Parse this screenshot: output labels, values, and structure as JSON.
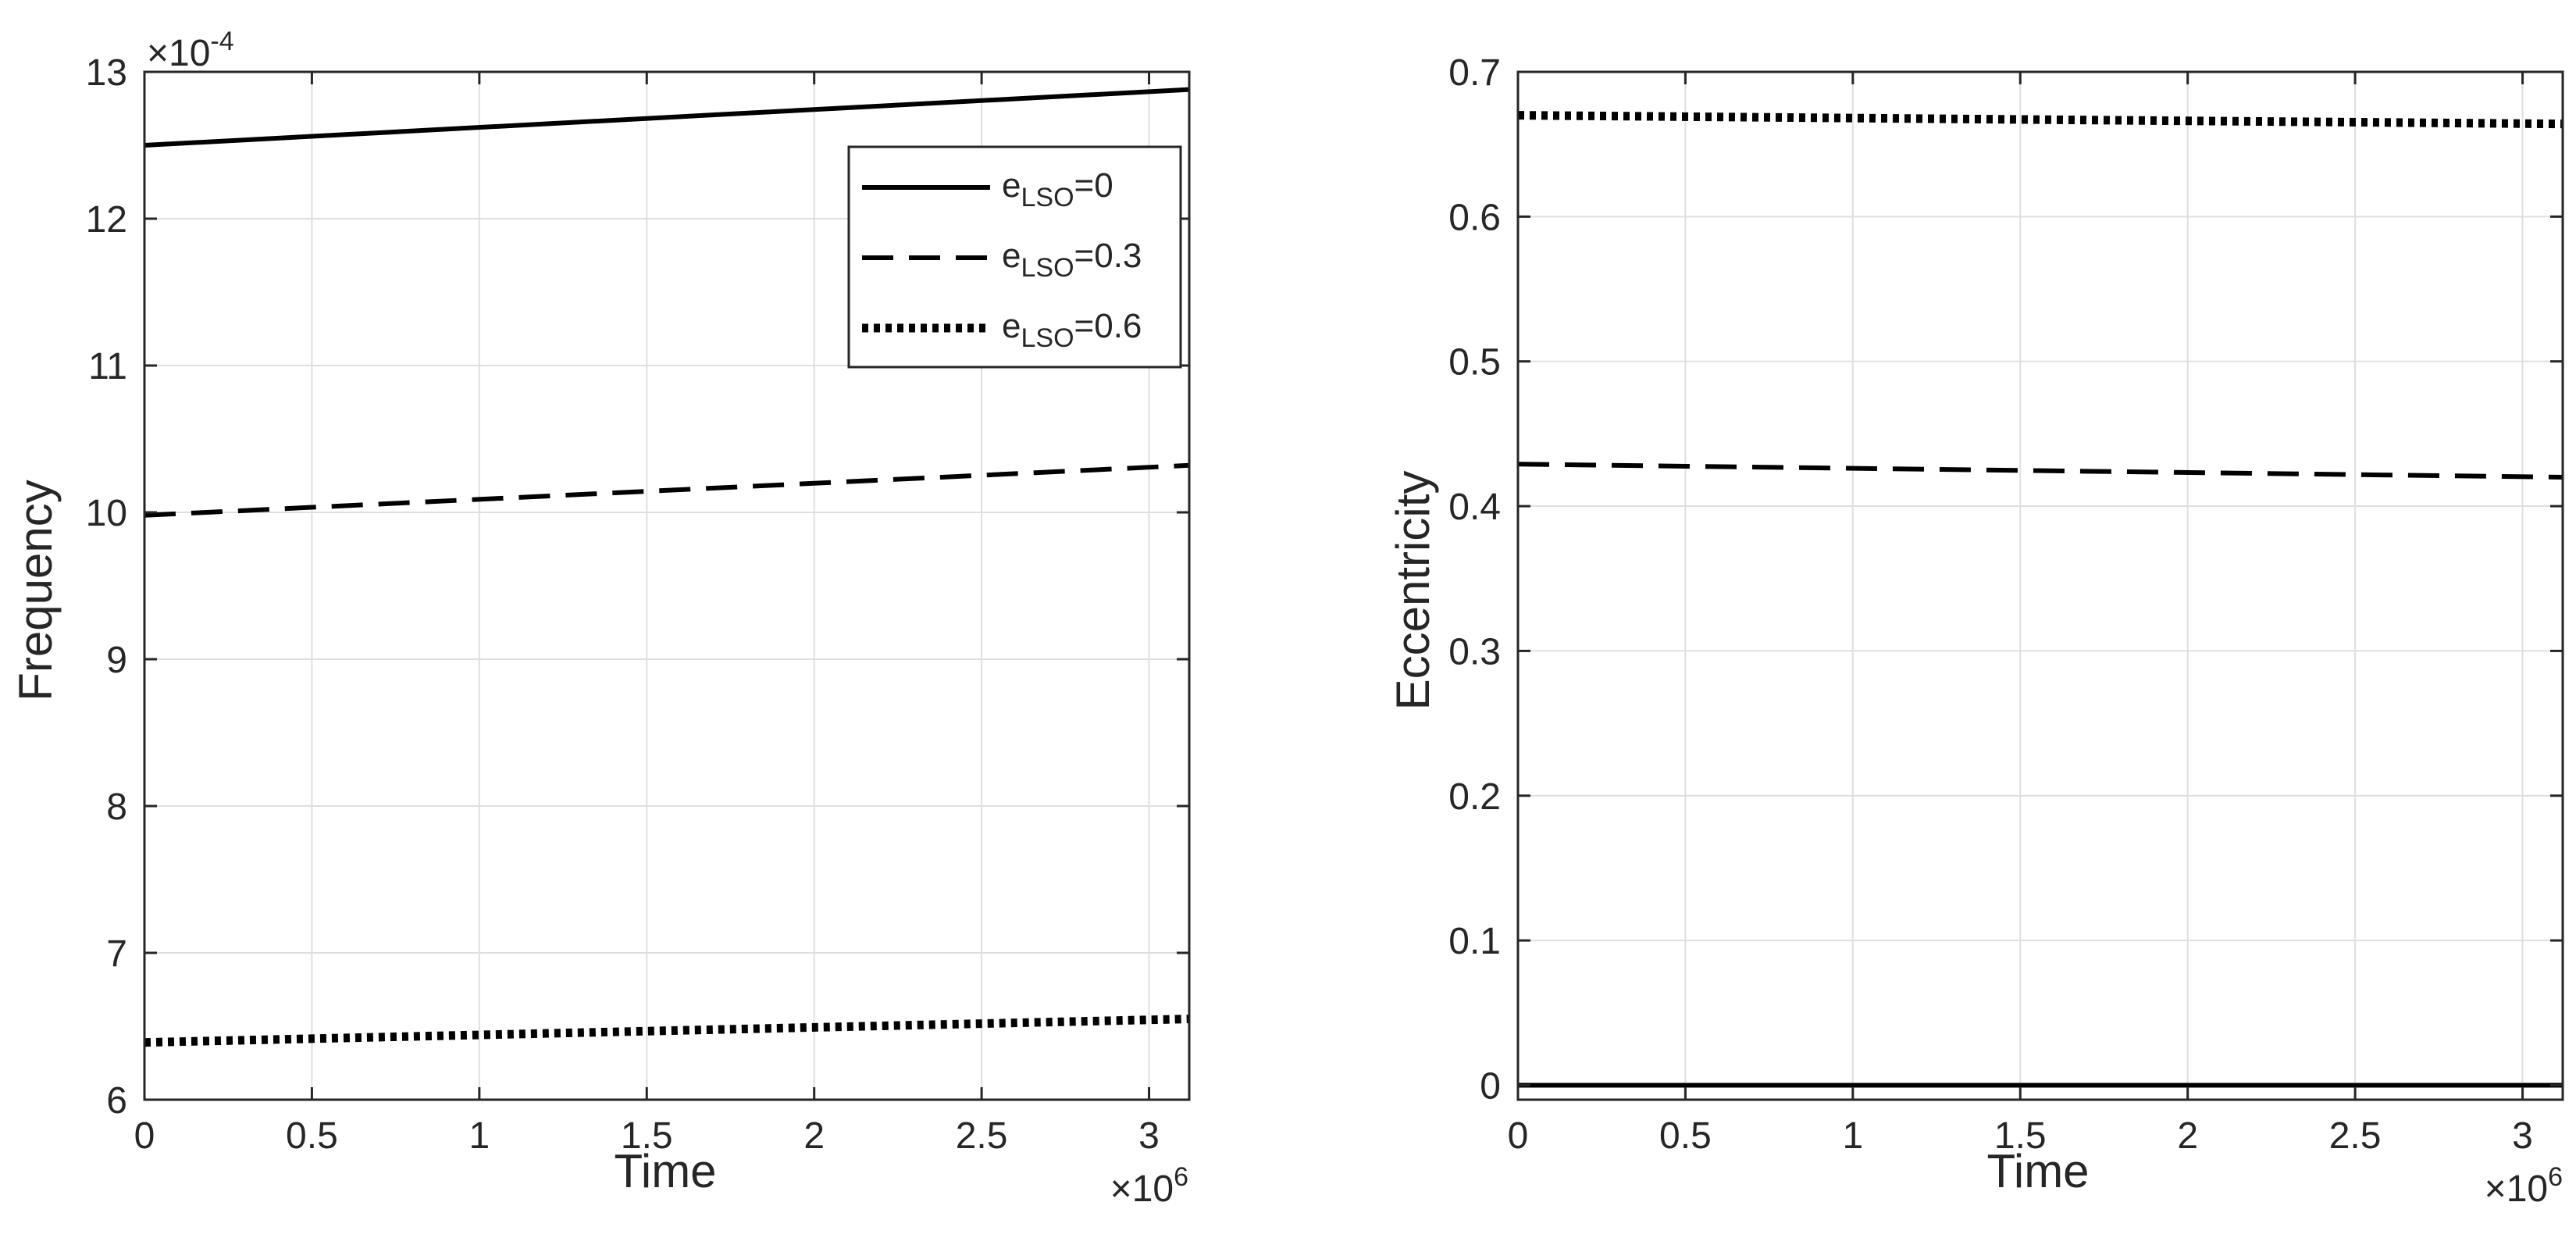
{
  "chart_data": [
    {
      "type": "line",
      "xlabel": "Time",
      "ylabel": "Frequency",
      "x_multiplier_label": "×10",
      "x_multiplier_exp": "6",
      "y_multiplier_label": "×10",
      "y_multiplier_exp": "-4",
      "xlim": [
        0,
        3.12
      ],
      "ylim": [
        6,
        13
      ],
      "xticks": [
        0,
        0.5,
        1,
        1.5,
        2,
        2.5,
        3
      ],
      "xtick_labels": [
        "0",
        "0.5",
        "1",
        "1.5",
        "2",
        "2.5",
        "3"
      ],
      "yticks": [
        6,
        7,
        8,
        9,
        10,
        11,
        12,
        13
      ],
      "ytick_labels": [
        "6",
        "7",
        "8",
        "9",
        "10",
        "11",
        "12",
        "13"
      ],
      "grid": true,
      "legend_position": "top-right",
      "series": [
        {
          "name": "e_LSO=0",
          "style": "solid",
          "x": [
            0,
            3.12
          ],
          "y": [
            12.5,
            12.88
          ]
        },
        {
          "name": "e_LSO=0.3",
          "style": "dashed",
          "x": [
            0,
            3.12
          ],
          "y": [
            9.98,
            10.32
          ]
        },
        {
          "name": "e_LSO=0.6",
          "style": "dotted",
          "x": [
            0,
            3.12
          ],
          "y": [
            6.39,
            6.55
          ]
        }
      ]
    },
    {
      "type": "line",
      "xlabel": "Time",
      "ylabel": "Eccentricity",
      "x_multiplier_label": "×10",
      "x_multiplier_exp": "6",
      "xlim": [
        0,
        3.12
      ],
      "ylim": [
        -0.01,
        0.7
      ],
      "xticks": [
        0,
        0.5,
        1,
        1.5,
        2,
        2.5,
        3
      ],
      "xtick_labels": [
        "0",
        "0.5",
        "1",
        "1.5",
        "2",
        "2.5",
        "3"
      ],
      "yticks": [
        0,
        0.1,
        0.2,
        0.3,
        0.4,
        0.5,
        0.6,
        0.7
      ],
      "ytick_labels": [
        "0",
        "0.1",
        "0.2",
        "0.3",
        "0.4",
        "0.5",
        "0.6",
        "0.7"
      ],
      "grid": true,
      "series": [
        {
          "name": "e_LSO=0",
          "style": "solid",
          "x": [
            0,
            3.12
          ],
          "y": [
            0,
            0
          ]
        },
        {
          "name": "e_LSO=0.3",
          "style": "dashed",
          "x": [
            0,
            3.12
          ],
          "y": [
            0.429,
            0.42
          ]
        },
        {
          "name": "e_LSO=0.6",
          "style": "dotted",
          "x": [
            0,
            3.12
          ],
          "y": [
            0.67,
            0.664
          ]
        }
      ]
    }
  ],
  "legend": {
    "entries": [
      {
        "base": "e",
        "sub": "LSO",
        "suffix": "=0",
        "style": "solid"
      },
      {
        "base": "e",
        "sub": "LSO",
        "suffix": "=0.3",
        "style": "dashed"
      },
      {
        "base": "e",
        "sub": "LSO",
        "suffix": "=0.6",
        "style": "dotted"
      }
    ]
  },
  "colors": {
    "line": "#000000",
    "axis": "#262626",
    "grid": "#dfdfdf",
    "background": "#ffffff"
  }
}
